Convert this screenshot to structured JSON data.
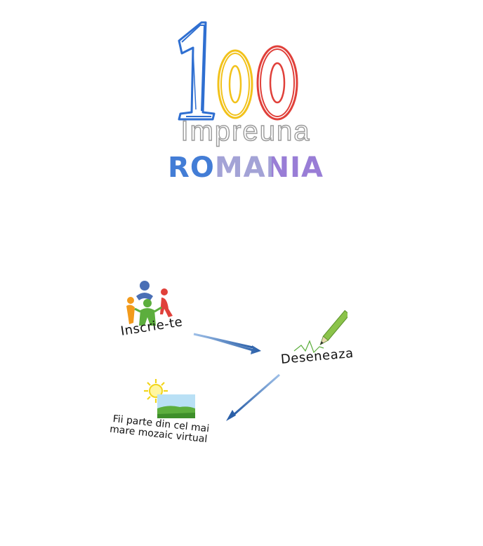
{
  "logo": {
    "number": "100",
    "word_top": "Impreuna",
    "word_bottom": "ROMANIA",
    "colors": {
      "blue": "#2f6fd1",
      "yellow": "#f2c21b",
      "red": "#e0403a",
      "gray": "#9a9a9a"
    }
  },
  "steps": [
    {
      "label": "Inscrie-te",
      "icon": "people-circle-icon"
    },
    {
      "label": "Deseneaza",
      "icon": "pencil-drawing-icon"
    },
    {
      "line1": "Fii parte din cel mai",
      "line2": "mare mozaic virtual",
      "icon": "sun-landscape-icon"
    }
  ],
  "arrow_color": "#2a5fa8"
}
